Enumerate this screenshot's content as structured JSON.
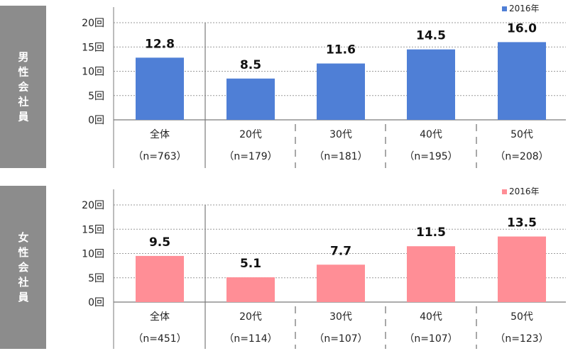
{
  "legend_label": "2016年",
  "tick_suffix": "回",
  "chart_data": [
    {
      "type": "bar",
      "side_label": [
        "男",
        "性",
        "会",
        "社",
        "員"
      ],
      "categories": [
        "全体",
        "20代",
        "30代",
        "40代",
        "50代"
      ],
      "counts": [
        "（n=763）",
        "（n=179）",
        "（n=181）",
        "（n=195）",
        "（n=208）"
      ],
      "series": [
        {
          "name": "2016年",
          "values": [
            12.8,
            8.5,
            11.6,
            14.5,
            16.0
          ]
        }
      ],
      "value_labels": [
        "12.8",
        "8.5",
        "11.6",
        "14.5",
        "16.0"
      ],
      "ylim": [
        0,
        20
      ],
      "yticks": [
        0,
        5,
        10,
        15,
        20
      ],
      "color": "#4f7fd6",
      "grid": true,
      "legend_position": "top-right"
    },
    {
      "type": "bar",
      "side_label": [
        "女",
        "性",
        "会",
        "社",
        "員"
      ],
      "categories": [
        "全体",
        "20代",
        "30代",
        "40代",
        "50代"
      ],
      "counts": [
        "（n=451）",
        "（n=114）",
        "（n=107）",
        "（n=107）",
        "（n=123）"
      ],
      "series": [
        {
          "name": "2016年",
          "values": [
            9.5,
            5.1,
            7.7,
            11.5,
            13.5
          ]
        }
      ],
      "value_labels": [
        "9.5",
        "5.1",
        "7.7",
        "11.5",
        "13.5"
      ],
      "ylim": [
        0,
        20
      ],
      "yticks": [
        0,
        5,
        10,
        15,
        20
      ],
      "color": "#ff8e96",
      "grid": true,
      "legend_position": "top-right"
    }
  ]
}
